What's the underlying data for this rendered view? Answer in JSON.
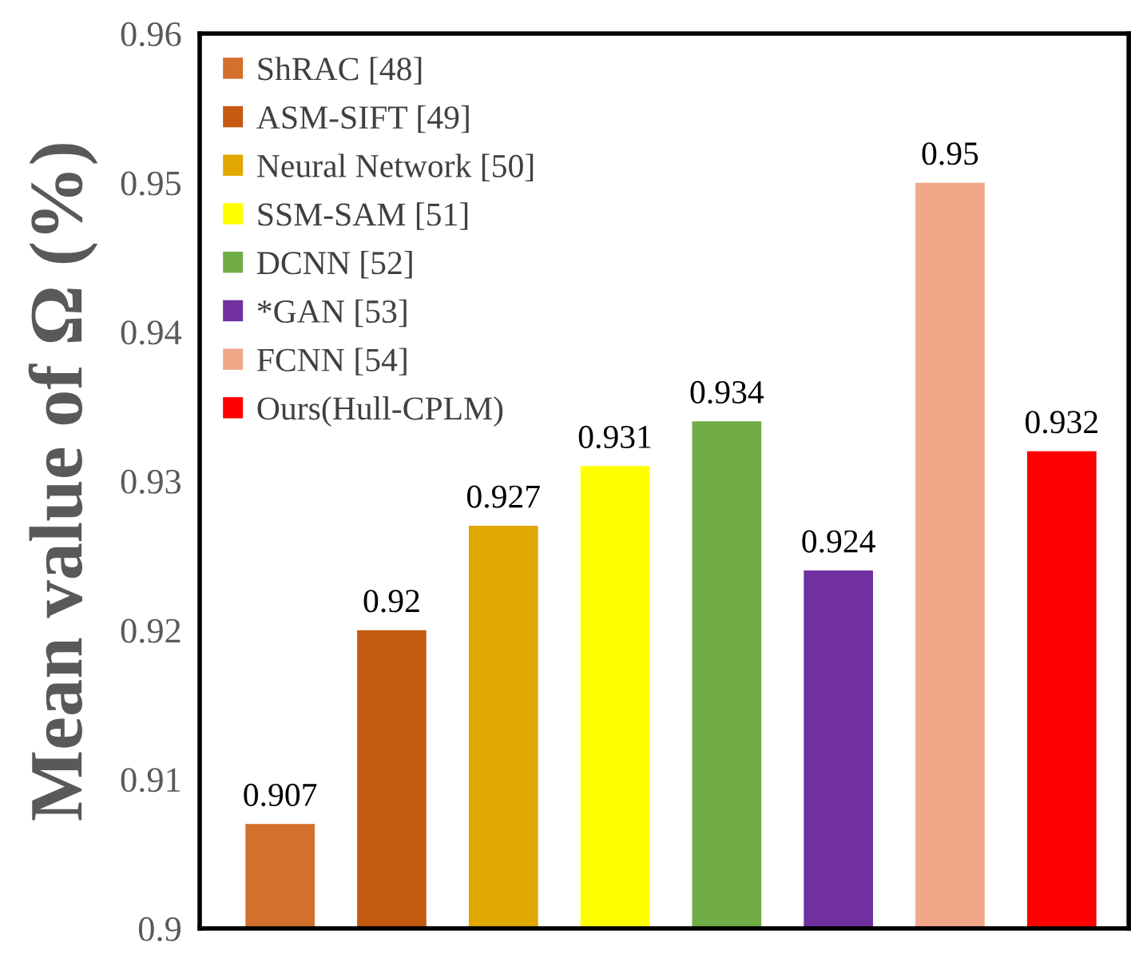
{
  "chart_data": {
    "type": "bar",
    "ylabel": "Mean value of Ω (%)",
    "categories": [
      null,
      null,
      null,
      null,
      null,
      null,
      null,
      null
    ],
    "series": [
      {
        "name": "ShRAC [48]",
        "color": "#d2702c",
        "values": [
          0.907,
          null,
          null,
          null,
          null,
          null,
          null,
          null
        ]
      },
      {
        "name": "ASM-SIFT [49]",
        "color": "#c55a11",
        "values": [
          null,
          0.92,
          null,
          null,
          null,
          null,
          null,
          null
        ]
      },
      {
        "name": "Neural Network [50]",
        "color": "#e0a800",
        "values": [
          null,
          null,
          0.927,
          null,
          null,
          null,
          null,
          null
        ]
      },
      {
        "name": "SSM-SAM [51]",
        "color": "#ffff00",
        "values": [
          null,
          null,
          null,
          0.931,
          null,
          null,
          null,
          null
        ]
      },
      {
        "name": "DCNN [52]",
        "color": "#70ad47",
        "values": [
          null,
          null,
          null,
          null,
          0.934,
          null,
          null,
          null
        ]
      },
      {
        "name": "*GAN [53]",
        "color": "#7030a0",
        "values": [
          null,
          null,
          null,
          null,
          null,
          0.924,
          null,
          null
        ]
      },
      {
        "name": "FCNN [54]",
        "color": "#f0a888",
        "values": [
          null,
          null,
          null,
          null,
          null,
          null,
          0.95,
          null
        ]
      },
      {
        "name": "Ours(Hull-CPLM)",
        "color": "#ff0000",
        "values": [
          null,
          null,
          null,
          null,
          null,
          null,
          null,
          0.932
        ]
      }
    ],
    "ylim": [
      0.9,
      0.96
    ],
    "yticks": [
      0.9,
      0.91,
      0.92,
      0.93,
      0.94,
      0.95,
      0.96
    ],
    "data_labels": true,
    "legend": "top left",
    "grid": false
  }
}
